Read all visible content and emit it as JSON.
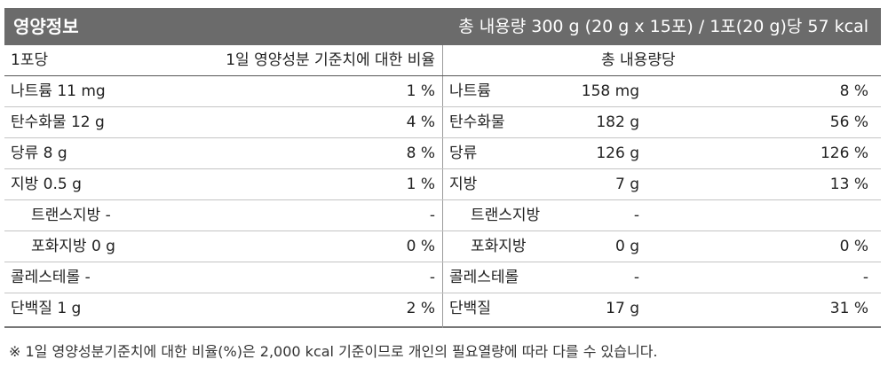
{
  "header": {
    "title": "영양정보",
    "summary": "총 내용량 300 g (20 g x 15포) / 1포(20 g)당 57 kcal"
  },
  "subheader": {
    "per_serving": "1포당",
    "daily_value": "1일 영양성분 기준치에 대한 비율",
    "per_total": "총 내용량당"
  },
  "rows": [
    {
      "name": "나트륨 11 mg",
      "pct": "1 %",
      "rname": "나트륨",
      "amount": "158 mg",
      "rpct": "8 %"
    },
    {
      "name": "탄수화물 12 g",
      "pct": "4 %",
      "rname": "탄수화물",
      "amount": "182 g",
      "rpct": "56 %"
    },
    {
      "name": "당류 8 g",
      "pct": "8 %",
      "rname": "당류",
      "amount": "126 g",
      "rpct": "126 %"
    },
    {
      "name": "지방 0.5 g",
      "pct": "1 %",
      "rname": "지방",
      "amount": "7 g",
      "rpct": "13 %"
    },
    {
      "name": "트랜스지방 -",
      "pct": "-",
      "rname": "트랜스지방",
      "amount": "-",
      "rpct": ""
    },
    {
      "name": "포화지방 0 g",
      "pct": "0 %",
      "rname": "포화지방",
      "amount": "0 g",
      "rpct": "0 %"
    },
    {
      "name": "콜레스테롤 -",
      "pct": "-",
      "rname": "콜레스테롤",
      "amount": "-",
      "rpct": "-"
    },
    {
      "name": "단백질 1 g",
      "pct": "2 %",
      "rname": "단백질",
      "amount": "17 g",
      "rpct": "31 %"
    }
  ],
  "footnote": "※ 1일 영양성분기준치에 대한 비율(%)은 2,000 kcal 기준이므로 개인의 필요열량에 따라 다를 수 있습니다."
}
